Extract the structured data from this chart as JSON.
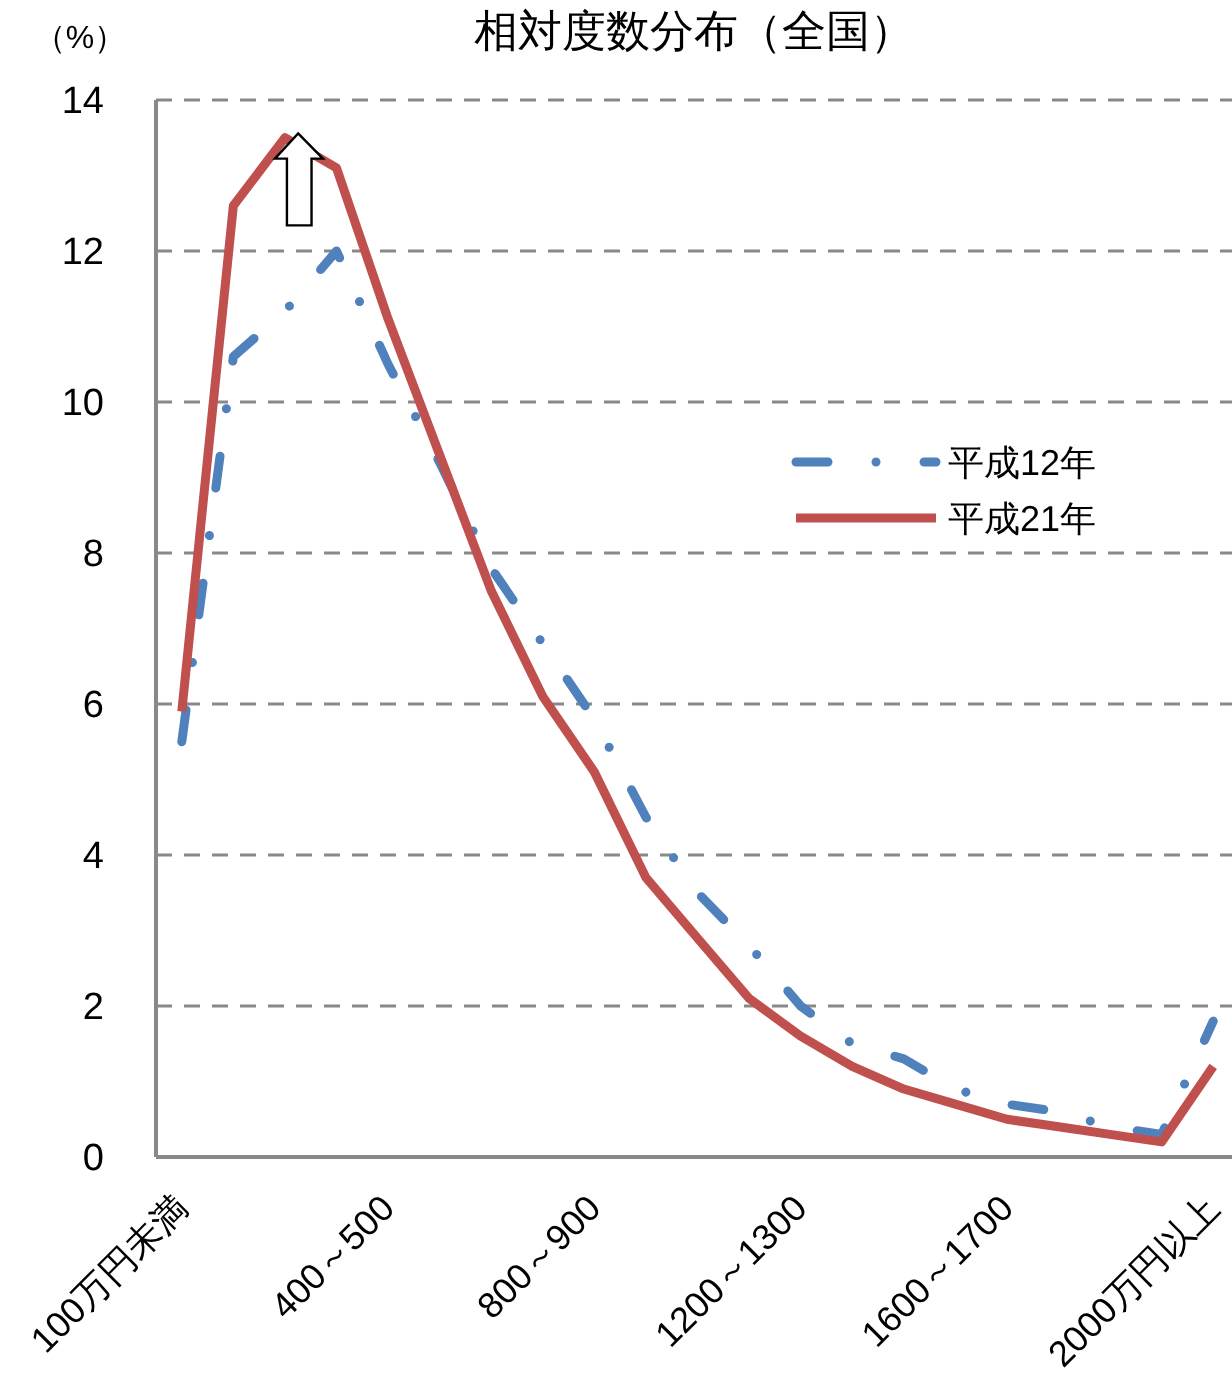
{
  "chart_data": {
    "type": "line",
    "title": "相対度数分布（全国）",
    "ylabel": "（%）",
    "categories": [
      "100万円未満",
      null,
      null,
      null,
      "400～500",
      null,
      null,
      null,
      "800～900",
      null,
      null,
      null,
      "1200～1300",
      null,
      null,
      null,
      "1600～1700",
      null,
      null,
      null,
      "2000万円以上"
    ],
    "series": [
      {
        "name": "平成12年",
        "color": "#4f81bd",
        "line_style": "dashdot",
        "values": [
          5.5,
          10.6,
          11.2,
          12.0,
          10.5,
          9.2,
          7.8,
          6.8,
          5.8,
          4.5,
          3.5,
          2.8,
          2.0,
          1.5,
          1.3,
          0.9,
          0.7,
          0.6,
          0.4,
          0.3,
          1.8
        ]
      },
      {
        "name": "平成21年",
        "color": "#c0504d",
        "line_style": "solid",
        "values": [
          5.9,
          12.6,
          13.5,
          13.1,
          11.1,
          9.3,
          7.5,
          6.1,
          5.1,
          3.7,
          2.9,
          2.1,
          1.6,
          1.2,
          0.9,
          0.7,
          0.5,
          0.4,
          0.3,
          0.2,
          1.2
        ]
      }
    ],
    "ylim": [
      0,
      14
    ],
    "yticks": [
      0,
      2,
      4,
      6,
      8,
      10,
      12,
      14
    ],
    "grid": "y",
    "legend": "right"
  }
}
